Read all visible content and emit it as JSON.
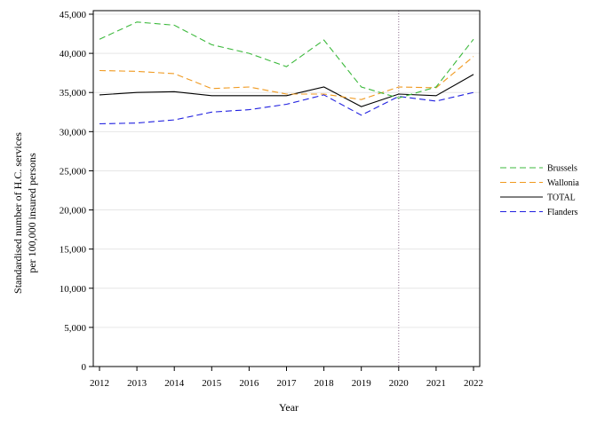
{
  "chart_data": {
    "type": "line",
    "title": "",
    "xlabel": "Year",
    "ylabel": [
      "Standardised number of H.C. services",
      "per 100,000 insured persons"
    ],
    "x": [
      2012,
      2013,
      2014,
      2015,
      2016,
      2017,
      2018,
      2019,
      2020,
      2021,
      2022
    ],
    "xlim": [
      2012,
      2022
    ],
    "ylim": [
      0,
      45000
    ],
    "yticks": [
      0,
      5000,
      10000,
      15000,
      20000,
      25000,
      30000,
      35000,
      40000,
      45000
    ],
    "ytick_labels": [
      "0",
      "5,000",
      "10,000",
      "15,000",
      "20,000",
      "25,000",
      "30,000",
      "35,000",
      "40,000",
      "45,000"
    ],
    "xtick_labels": [
      "2012",
      "2013",
      "2014",
      "2015",
      "2016",
      "2017",
      "2018",
      "2019",
      "2020",
      "2021",
      "2022"
    ],
    "grid": "horizontal",
    "reference_line_x": 2020,
    "legend_position": "right",
    "series": [
      {
        "name": "Brussels",
        "color": "#3cb93c",
        "dash": "dashed",
        "values": [
          41800,
          44000,
          43600,
          41100,
          40000,
          38300,
          41700,
          35700,
          34300,
          35700,
          41800
        ]
      },
      {
        "name": "Wallonia",
        "color": "#f09a20",
        "dash": "dashed",
        "values": [
          37800,
          37700,
          37400,
          35500,
          35700,
          34800,
          34800,
          34100,
          35700,
          35600,
          39600
        ]
      },
      {
        "name": "TOTAL",
        "color": "#000000",
        "dash": "solid",
        "values": [
          34700,
          35000,
          35100,
          34600,
          34600,
          34600,
          35700,
          33200,
          34800,
          34600,
          37300
        ]
      },
      {
        "name": "Flanders",
        "color": "#2020e0",
        "dash": "dashed",
        "values": [
          31000,
          31100,
          31500,
          32500,
          32800,
          33500,
          34700,
          32100,
          34500,
          33900,
          35000
        ]
      }
    ]
  }
}
